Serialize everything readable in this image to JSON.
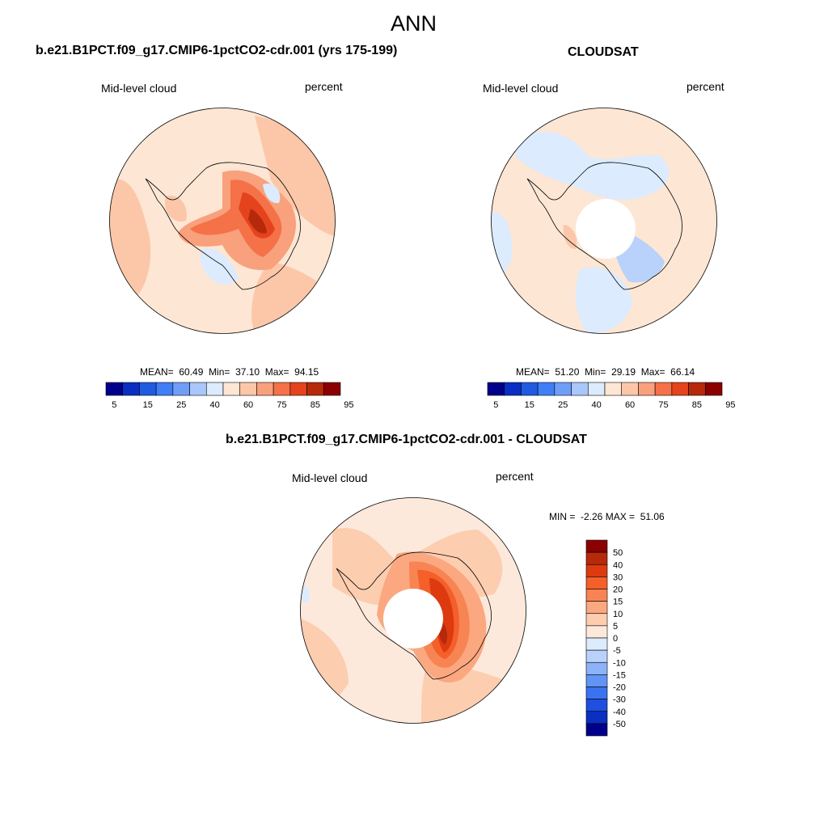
{
  "page_title": "ANN",
  "colors": {
    "blue_dark": "#00008b",
    "red_dark": "#8b0000",
    "land": "#fde6d4",
    "ocean": "#fde6d4",
    "coast": "#000000"
  },
  "panels": {
    "model": {
      "title": "b.e21.B1PCT.f09_g17.CMIP6-1pctCO2-cdr.001 (yrs 175-199)",
      "variable": "Mid-level cloud",
      "units": "percent",
      "stats": {
        "mean_label": "MEAN=",
        "mean": "60.49",
        "min_label": "Min=",
        "min": "37.10",
        "max_label": "Max=",
        "max": "94.15"
      }
    },
    "obs": {
      "title": "CLOUDSAT",
      "variable": "Mid-level cloud",
      "units": "percent",
      "stats": {
        "mean_label": "MEAN=",
        "mean": "51.20",
        "min_label": "Min=",
        "min": "29.19",
        "max_label": "Max=",
        "max": "66.14"
      }
    },
    "diff": {
      "title": "b.e21.B1PCT.f09_g17.CMIP6-1pctCO2-cdr.001 - CLOUDSAT",
      "variable": "Mid-level cloud",
      "units": "percent",
      "minmax": "MIN =  -2.26 MAX =  51.06"
    }
  },
  "colorbars": {
    "abs": {
      "colors": [
        "#00008b",
        "#0a2ec4",
        "#1f5be0",
        "#3f7ef5",
        "#6f9ef9",
        "#a9c7fb",
        "#dcebfd",
        "#fde6d4",
        "#fcc7a8",
        "#f9a07d",
        "#f57148",
        "#e5431d",
        "#b62a0b",
        "#8b0000"
      ],
      "ticks": [
        "5",
        "15",
        "25",
        "40",
        "60",
        "75",
        "85",
        "95"
      ]
    },
    "diff": {
      "colors": [
        "#8b0000",
        "#b62a0b",
        "#dd3a10",
        "#f55f2a",
        "#f88454",
        "#fba880",
        "#fdcdb0",
        "#fde9dc",
        "#dcebfd",
        "#b8d2fb",
        "#8cb3f8",
        "#6294f5",
        "#3b72f0",
        "#1e4fe0",
        "#0b2fc0",
        "#00008b"
      ],
      "ticks": [
        "50",
        "40",
        "30",
        "20",
        "15",
        "10",
        "5",
        "0",
        "-5",
        "-10",
        "-15",
        "-20",
        "-30",
        "-40",
        "-50"
      ]
    }
  }
}
